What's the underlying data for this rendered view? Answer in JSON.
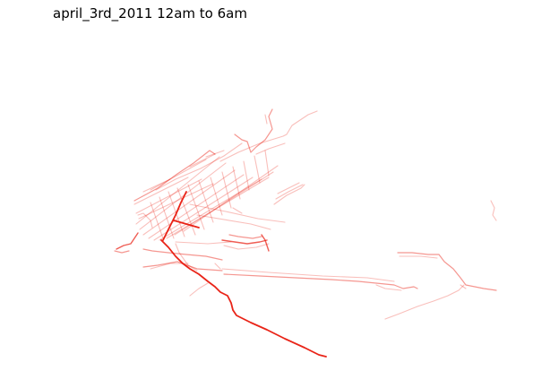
{
  "title": "april_3rd_2011 12am to 6am",
  "colors": {
    "background": "#ffffff",
    "trace": "#e8180c",
    "title_text": "#000000"
  }
}
